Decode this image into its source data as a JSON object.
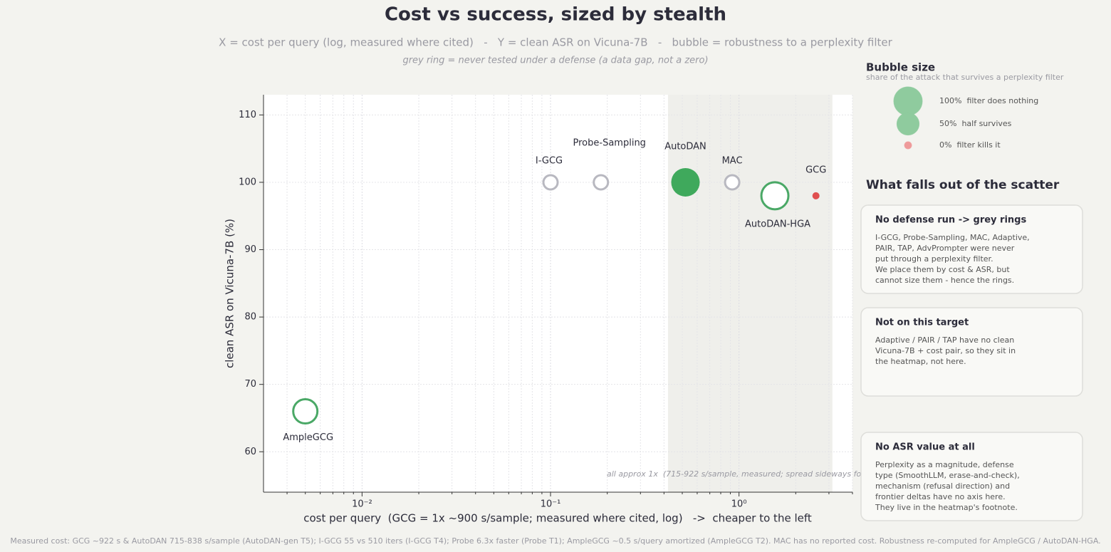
{
  "title": "Cost vs success, sized by stealth",
  "subtitle": "X = cost per query (log, measured where cited)   -   Y = clean ASR on Vicuna-7B   -   bubble = robustness to a perplexity filter",
  "note": "grey ring = never tested under a defense (a data gap, not a zero)",
  "chart_data": {
    "type": "scatter",
    "x_label": "cost per query  (GCG = 1x ~900 s/sample; measured where cited, log)   ->  cheaper to the left",
    "y_label": "clean ASR on Vicuna-7B (%)",
    "xscale": "log",
    "xlim": [
      0.003,
      4
    ],
    "ylim": [
      54,
      113
    ],
    "xticks": [
      {
        "value": 0.01,
        "label": "10⁻²"
      },
      {
        "value": 0.1,
        "label": "10⁻¹"
      },
      {
        "value": 1,
        "label": "10⁰"
      }
    ],
    "xminorticks": [
      0.004,
      0.005,
      0.006,
      0.007,
      0.008,
      0.009,
      0.02,
      0.03,
      0.04,
      0.05,
      0.06,
      0.07,
      0.08,
      0.09,
      0.2,
      0.3,
      0.4,
      0.5,
      0.6,
      0.7,
      0.8,
      0.9,
      2,
      3,
      4
    ],
    "yticks": [
      60,
      70,
      80,
      90,
      100,
      110
    ],
    "grid": true,
    "band": [
      0.42,
      3.13
    ],
    "band_color": "#efefeb",
    "band_annotation": "all approx 1x  (715-922 s/sample, measured; spread sideways fo",
    "labels": [
      "AmpleGCG",
      "I-GCG",
      "Probe-Sampling",
      "AutoDAN",
      "MAC",
      "AutoDAN-HGA",
      "GCG"
    ],
    "x": [
      0.005,
      0.1,
      0.185,
      0.52,
      0.92,
      1.55,
      2.56
    ],
    "values": [
      66,
      100,
      100,
      100,
      100,
      98,
      98
    ],
    "sizes": [
      64,
      null,
      null,
      100,
      null,
      87,
      0
    ],
    "filled": [
      false,
      false,
      false,
      true,
      false,
      false,
      true
    ],
    "colors": [
      "#4aa866",
      "#b8b8c0",
      "#b8b8c0",
      "#3fa95c",
      "#b8b8c0",
      "#4aa866",
      "#e04f4f"
    ],
    "size_legend": {
      "title": "Bubble size",
      "subtitle": "share of the attack that survives a perplexity filter",
      "items": [
        {
          "value": 100,
          "label": "100%  filter does nothing",
          "color": "#8fcb9e"
        },
        {
          "value": 50,
          "label": "50%  half survives",
          "color": "#8fcb9e"
        },
        {
          "value": 0,
          "label": "0%  filter kills it",
          "color": "#ee9a9a"
        }
      ]
    }
  },
  "insights": {
    "title": "What falls out of the scatter",
    "cards": [
      {
        "title": "No defense run -> grey rings",
        "lines": [
          "I-GCG, Probe-Sampling, MAC, Adaptive,",
          "PAIR, TAP, AdvPrompter were never",
          "put through a perplexity filter.",
          "We place them by cost & ASR, but",
          "cannot size them - hence the rings."
        ]
      },
      {
        "title": "Not on this target",
        "lines": [
          "Adaptive / PAIR / TAP have no clean",
          "Vicuna-7B + cost pair, so they sit in",
          "the heatmap, not here."
        ]
      },
      {
        "title": "No ASR value at all",
        "lines": [
          "Perplexity as a magnitude, defense",
          "type (SmoothLLM, erase-and-check),",
          "mechanism (refusal direction) and",
          "frontier deltas have no axis here.",
          "They live in the heatmap's footnote."
        ]
      }
    ]
  },
  "footer": "Measured cost: GCG ~922 s & AutoDAN 715-838 s/sample (AutoDAN-gen T5); I-GCG 55 vs 510 iters (I-GCG T4); Probe 6.3x faster (Probe T1); AmpleGCG ~0.5 s/query amortized (AmpleGCG T2). MAC has no reported cost. Robustness re-computed for AmpleGCG / AutoDAN-HGA."
}
